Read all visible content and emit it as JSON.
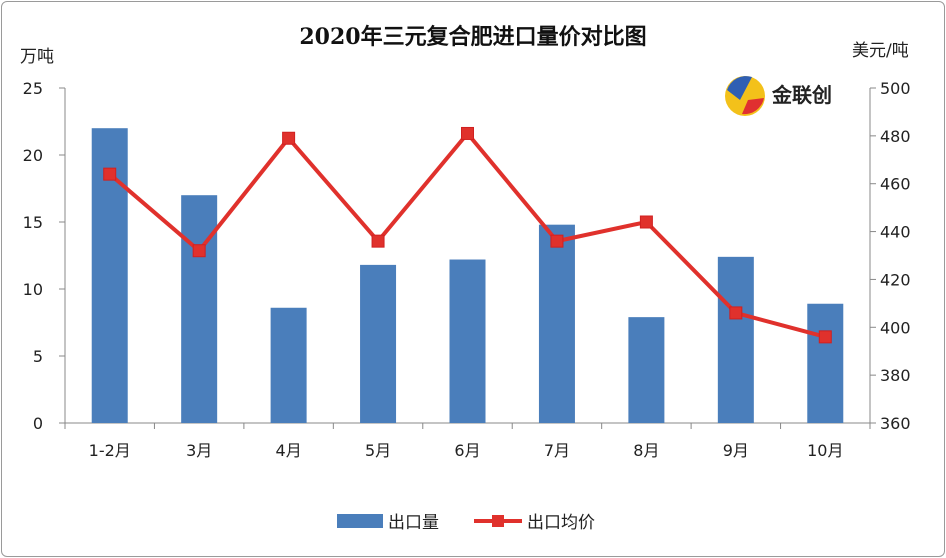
{
  "chart_data": {
    "type": "bar+line",
    "title": "2020年三元复合肥进口量价对比图",
    "categories": [
      "1-2月",
      "3月",
      "4月",
      "5月",
      "6月",
      "7月",
      "8月",
      "9月",
      "10月"
    ],
    "series": [
      {
        "name": "出口量",
        "type": "bar",
        "axis": "left",
        "color": "#4a7ebb",
        "values": [
          22.0,
          17.0,
          8.6,
          11.8,
          12.2,
          14.8,
          7.9,
          12.4,
          8.9
        ]
      },
      {
        "name": "出口均价",
        "type": "line",
        "axis": "right",
        "color": "#e0312c",
        "marker": "square",
        "values": [
          464,
          432,
          479,
          436,
          481,
          436,
          444,
          406,
          396
        ]
      }
    ],
    "y_left": {
      "label": "万吨",
      "range": [
        0,
        25
      ],
      "ticks": [
        0,
        5,
        10,
        15,
        20,
        25
      ]
    },
    "y_right": {
      "label": "美元/吨",
      "range": [
        360,
        500
      ],
      "ticks": [
        360,
        380,
        400,
        420,
        440,
        460,
        480,
        500
      ]
    },
    "grid": false,
    "legend": "bottom",
    "logo": {
      "text": "金联创"
    }
  }
}
